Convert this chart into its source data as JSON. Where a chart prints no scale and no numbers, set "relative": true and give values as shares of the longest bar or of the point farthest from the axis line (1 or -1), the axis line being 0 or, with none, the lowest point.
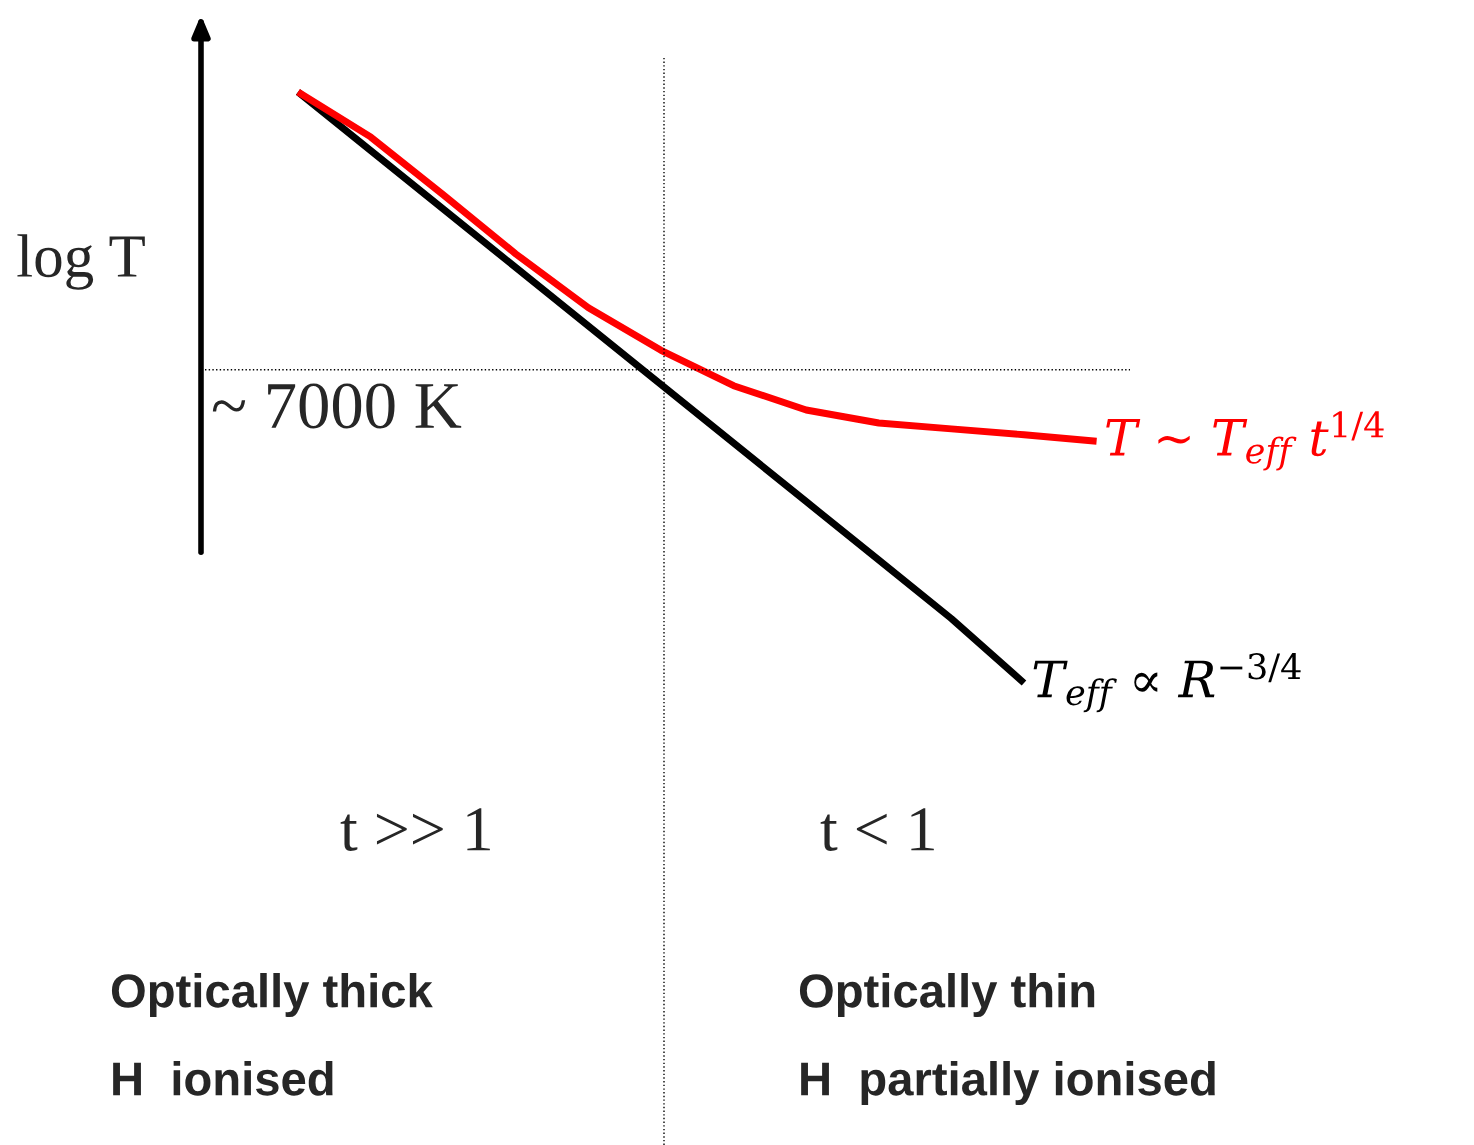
{
  "chart_data": {
    "type": "line",
    "relative": true,
    "ylabel": "log T",
    "legend": false,
    "marker": "none",
    "line_style": "solid",
    "categories": [
      null,
      null,
      null,
      null,
      null,
      null,
      null,
      null,
      null,
      null,
      null,
      null
    ],
    "series": [
      {
        "name": "T$_{eff}$ ∝ R$^{−3/4}$",
        "color": "#000000",
        "values": [
          1.0,
          0.901,
          0.802,
          0.703,
          0.604,
          0.505,
          0.406,
          0.307,
          0.208,
          0.109,
          0.0,
          null
        ]
      },
      {
        "name": "T ~ T$_{eff}$ t$^{1/4}$",
        "color": "#ff0000",
        "values": [
          1.0,
          0.924,
          0.826,
          0.726,
          0.635,
          0.563,
          0.503,
          0.462,
          0.44,
          0.43,
          0.42,
          0.409
        ]
      }
    ],
    "ref_lines": [
      {
        "axis": "y",
        "value": 0.53,
        "label": "~ 7000 K",
        "color": "#000000",
        "line_style": "dotted"
      }
    ],
    "annotations": [
      "t >> 1",
      "t < 1",
      "Optically thick",
      "H  ionised",
      "Optically thin",
      "H  partially ionised"
    ]
  }
}
